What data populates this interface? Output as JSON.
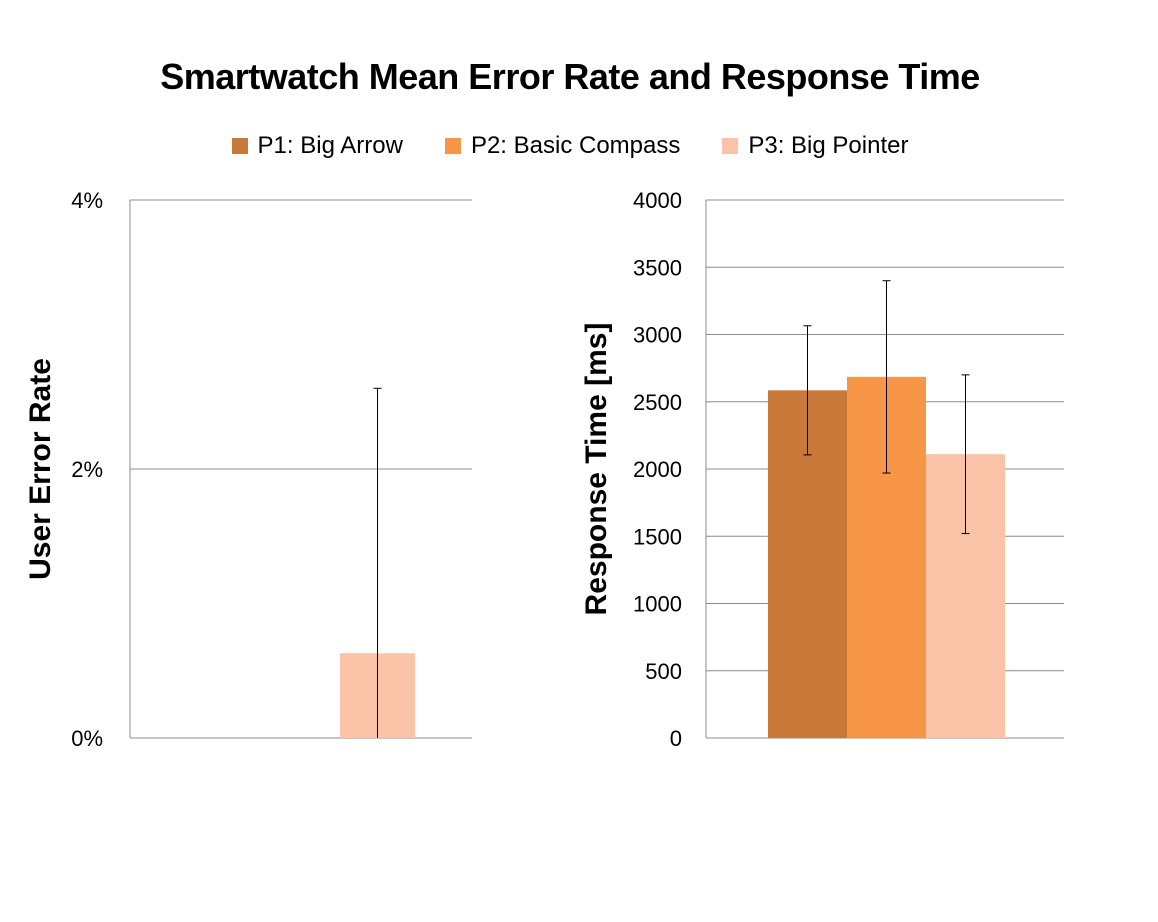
{
  "chart_data": [
    {
      "type": "bar",
      "title": "Smartwatch Mean Error Rate and Response Time",
      "categories": [
        "P1: Big Arrow",
        "P2: Basic Compass",
        "P3: Big Pointer"
      ],
      "ylabel": "User Error Rate",
      "ylim": [
        0,
        4
      ],
      "unit": "%",
      "yticks": [
        "0%",
        "2%",
        "4%"
      ],
      "grid": true,
      "values": [
        0,
        0,
        0.63
      ],
      "error": [
        0,
        0,
        1.97
      ],
      "colors": [
        "#C97A3A",
        "#F79646",
        "#FAC3A8"
      ]
    },
    {
      "type": "bar",
      "categories": [
        "P1: Big Arrow",
        "P2: Basic Compass",
        "P3: Big Pointer"
      ],
      "ylabel": "Response Time [ms]",
      "ylim": [
        0,
        4000
      ],
      "yticks": [
        "0",
        "500",
        "1000",
        "1500",
        "2000",
        "2500",
        "3000",
        "3500",
        "4000"
      ],
      "grid": true,
      "values": [
        2585,
        2685,
        2110
      ],
      "error": [
        480,
        715,
        590
      ],
      "colors": [
        "#C97A3A",
        "#F79646",
        "#FAC3A8"
      ]
    }
  ],
  "legend": {
    "placement": "top",
    "items": [
      {
        "label": "P1: Big Arrow",
        "color": "#C97A3A"
      },
      {
        "label": "P2: Basic Compass",
        "color": "#F79646"
      },
      {
        "label": "P3: Big Pointer",
        "color": "#FAC3A8"
      }
    ]
  }
}
